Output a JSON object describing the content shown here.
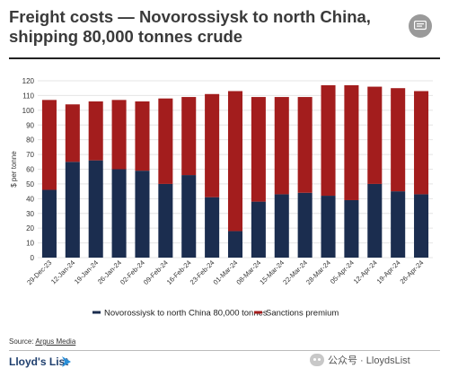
{
  "header": {
    "title": "Freight costs — Novorossiysk to north China, shipping 80,000 tonnes crude"
  },
  "footer": {
    "source_prefix": "Source: ",
    "source_name": "Argus Media",
    "brand": "Lloyd's List",
    "watermark": "公众号 · LloydsList"
  },
  "colors": {
    "series1": "#1b2d4f",
    "series2": "#a31d1d",
    "grid": "#e4e4e4"
  },
  "icons": {
    "menu": "message-icon",
    "brand_mark": "arrow-mark-icon",
    "watermark": "wechat-icon"
  },
  "chart_data": {
    "type": "bar",
    "stacked": true,
    "categories": [
      "29-Dec-23",
      "12-Jan-24",
      "19-Jan-24",
      "26-Jan-24",
      "02-Feb-24",
      "09-Feb-24",
      "16-Feb-24",
      "23-Feb-24",
      "01-Mar-24",
      "08-Mar-24",
      "15-Mar-24",
      "22-Mar-24",
      "28-Mar-24",
      "05-Apr-24",
      "12-Apr-24",
      "19-Apr-24",
      "26-Apr-24"
    ],
    "series": [
      {
        "name": "Novorossiysk to north China 80,000 tonnes",
        "values": [
          46,
          65,
          66,
          60,
          59,
          50,
          56,
          41,
          18,
          38,
          43,
          44,
          42,
          39,
          50,
          45,
          43
        ]
      },
      {
        "name": "Sanctions premium",
        "values": [
          61,
          39,
          40,
          47,
          47,
          58,
          53,
          70,
          95,
          71,
          66,
          65,
          75,
          78,
          66,
          70,
          70
        ]
      }
    ],
    "ylabel": "$ per tonne",
    "ylim": [
      0,
      120
    ],
    "yticks": [
      0,
      10,
      20,
      30,
      40,
      50,
      60,
      70,
      80,
      90,
      100,
      110,
      120
    ],
    "grid": true,
    "legend_position": "bottom"
  }
}
